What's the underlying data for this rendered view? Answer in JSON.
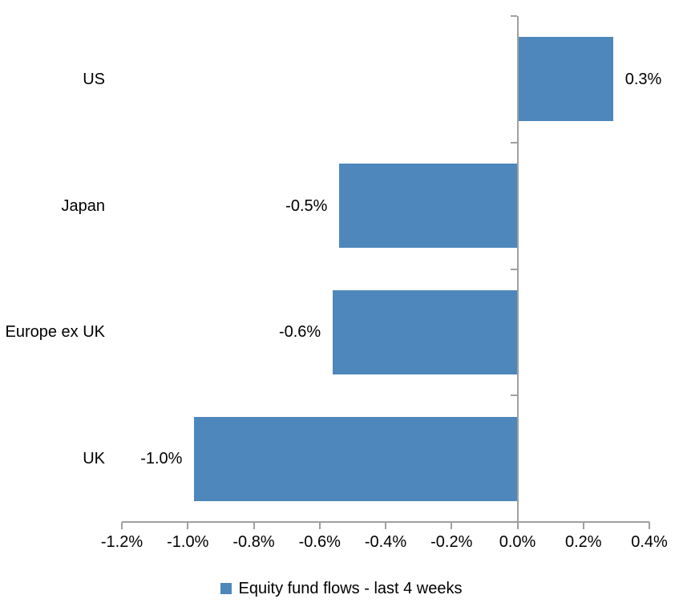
{
  "chart_data": {
    "type": "bar",
    "orientation": "horizontal",
    "categories": [
      "US",
      "Japan",
      "Europe ex UK",
      "UK"
    ],
    "values": [
      0.3,
      -0.5,
      -0.6,
      -1.0
    ],
    "plotted_values": [
      0.29,
      -0.54,
      -0.56,
      -0.98
    ],
    "data_labels": [
      "0.3%",
      "-0.5%",
      "-0.6%",
      "-1.0%"
    ],
    "series_name": "Equity fund flows - last 4 weeks",
    "xlim": [
      -1.2,
      0.4
    ],
    "x_tick_step": 0.2,
    "x_tick_labels": [
      "-1.2%",
      "-1.0%",
      "-0.8%",
      "-0.6%",
      "-0.4%",
      "-0.2%",
      "0.0%",
      "0.2%",
      "0.4%"
    ],
    "grid": false,
    "legend_position": "bottom-center",
    "colors": {
      "bar": "#4e87bb",
      "axis": "#a0a0a0",
      "text": "#000000",
      "background": "#ffffff"
    }
  }
}
